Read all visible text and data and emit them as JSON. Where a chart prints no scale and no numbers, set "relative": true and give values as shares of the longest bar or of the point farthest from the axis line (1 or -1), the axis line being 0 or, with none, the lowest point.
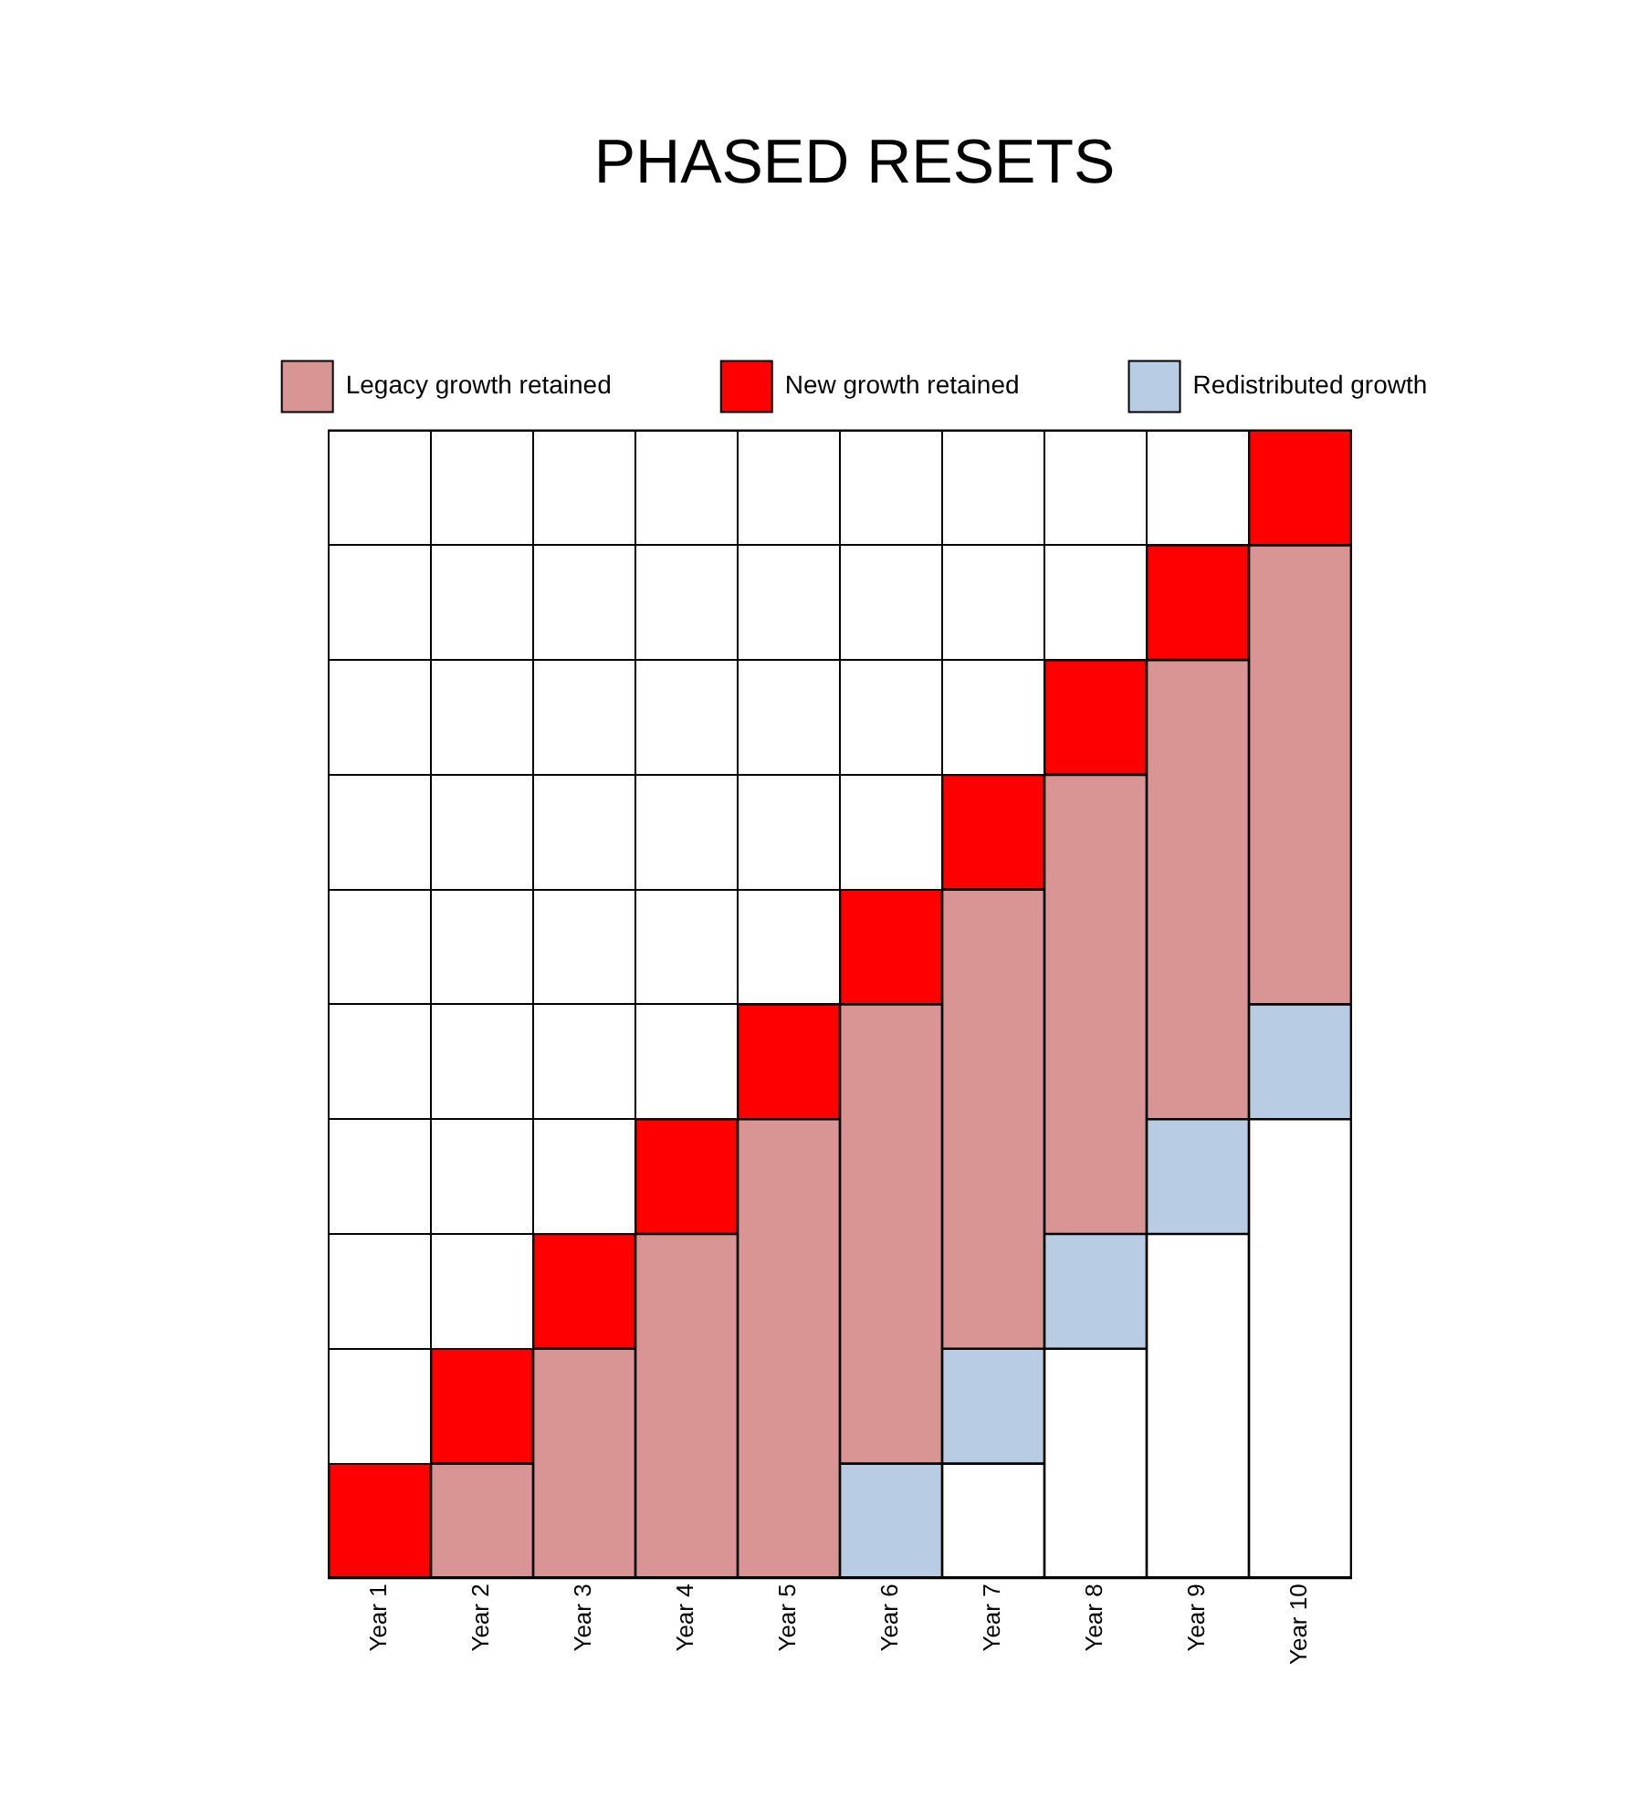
{
  "chart_data": {
    "type": "bar",
    "title": "PHASED RESETS",
    "stacked": true,
    "relative": true,
    "grid": true,
    "legend": "top",
    "categories": [
      "Year 1",
      "Year 2",
      "Year 3",
      "Year 4",
      "Year 5",
      "Year 6",
      "Year 7",
      "Year 8",
      "Year 9",
      "Year 10"
    ],
    "series": [
      {
        "color": "#ffffff",
        "values": [
          null,
          null,
          null,
          null,
          null,
          null,
          0.1,
          0.2,
          0.3,
          0.4
        ]
      },
      {
        "name": "Redistributed growth",
        "color": "#b8cce4",
        "values": [
          null,
          null,
          null,
          null,
          null,
          0.1,
          0.1,
          0.1,
          0.1,
          0.1
        ]
      },
      {
        "name": "Legacy growth retained",
        "color": "#d99594",
        "values": [
          null,
          0.1,
          0.2,
          0.3,
          0.4,
          0.4,
          0.4,
          0.4,
          0.4,
          0.4
        ]
      },
      {
        "name": "New growth retained",
        "color": "#ff0000",
        "values": [
          0.1,
          0.1,
          0.1,
          0.1,
          0.1,
          0.1,
          0.1,
          0.1,
          0.1,
          0.1
        ]
      }
    ]
  }
}
